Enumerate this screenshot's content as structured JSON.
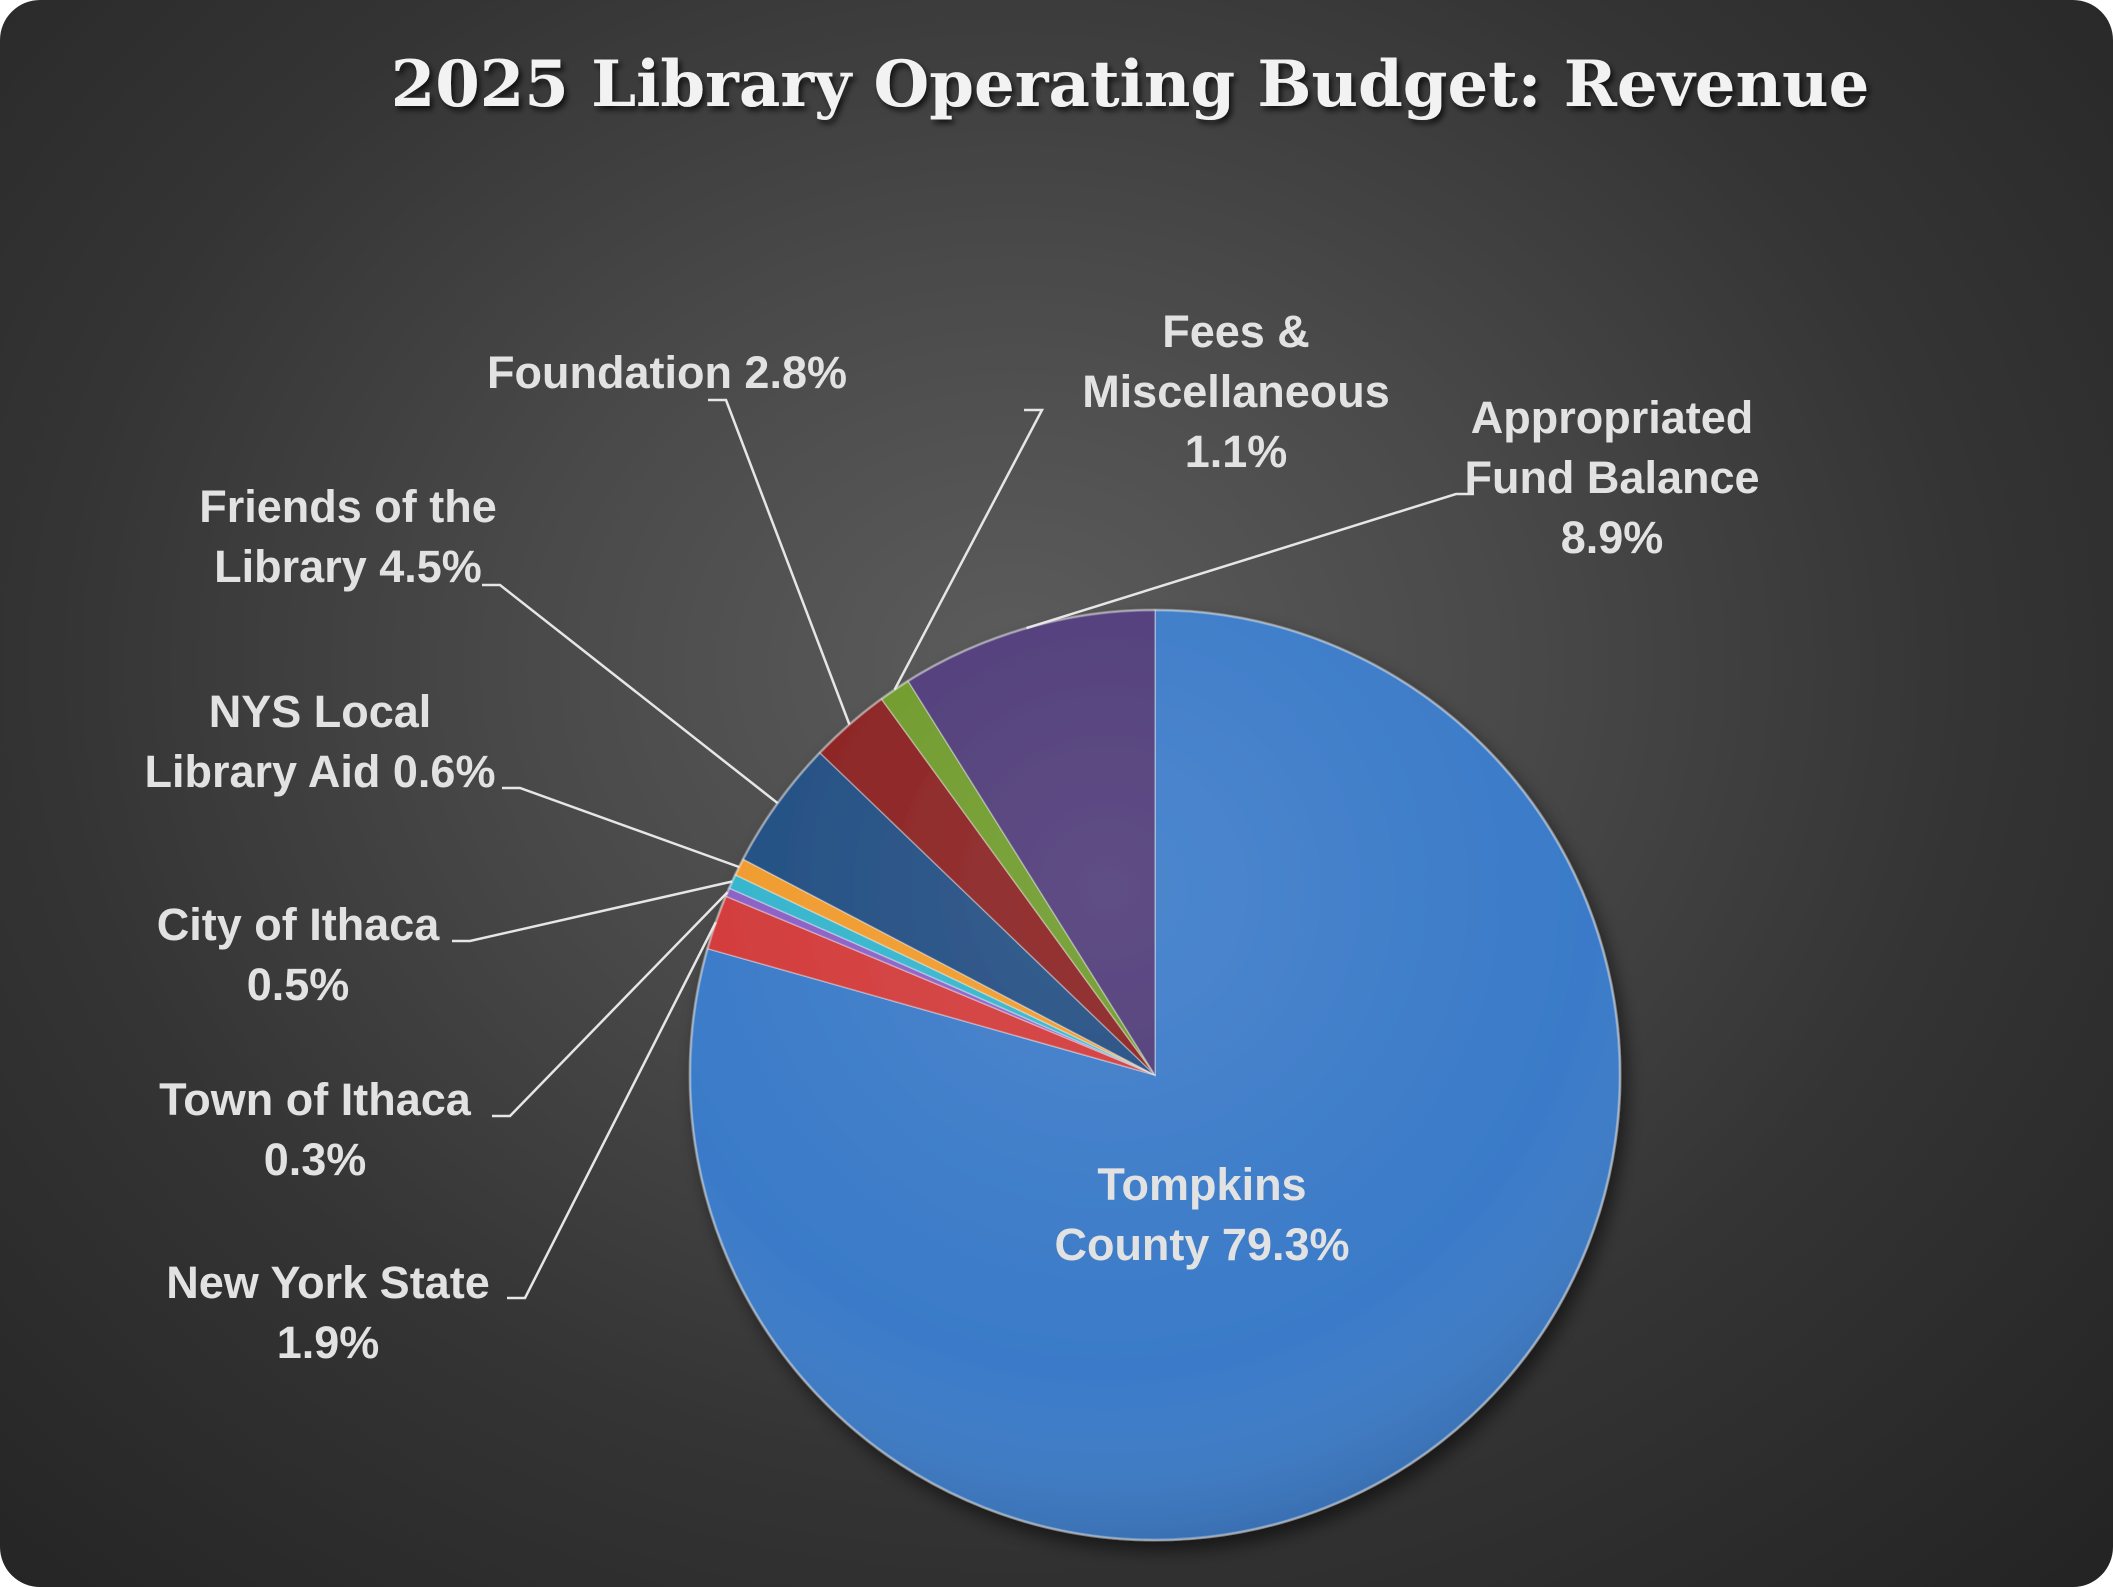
{
  "chart_data": {
    "type": "pie",
    "title": "2025 Library Operating Budget: Revenue",
    "start_angle_deg": 0,
    "direction": "clockwise",
    "slices": [
      {
        "name": "Tompkins County",
        "value": 79.3,
        "label_lines": [
          "Tompkins",
          "County 79.3%"
        ],
        "color": "#3a7ac8"
      },
      {
        "name": "New York State",
        "value": 1.9,
        "label_lines": [
          "New York State",
          "1.9%"
        ],
        "color": "#d23a3a"
      },
      {
        "name": "Town of Ithaca",
        "value": 0.3,
        "label_lines": [
          "Town of Ithaca",
          "0.3%"
        ],
        "color": "#8a5fc4"
      },
      {
        "name": "City of Ithaca",
        "value": 0.5,
        "label_lines": [
          "City of Ithaca",
          "0.5%"
        ],
        "color": "#34b4cc"
      },
      {
        "name": "NYS Local Library Aid",
        "value": 0.6,
        "label_lines": [
          "NYS Local",
          "Library Aid 0.6%"
        ],
        "color": "#f09a2c"
      },
      {
        "name": "Friends of the Library",
        "value": 4.5,
        "label_lines": [
          "Friends of the",
          "Library 4.5%"
        ],
        "color": "#214d82"
      },
      {
        "name": "Foundation",
        "value": 2.8,
        "label_lines": [
          "Foundation  2.8%"
        ],
        "color": "#8a2020"
      },
      {
        "name": "Fees & Miscellaneous",
        "value": 1.1,
        "label_lines": [
          "Fees &",
          "Miscellaneous",
          "1.1%"
        ],
        "color": "#6e9a2a"
      },
      {
        "name": "Appropriated Fund Balance",
        "value": 8.9,
        "label_lines": [
          "Appropriated",
          "Fund Balance",
          "8.9%"
        ],
        "color": "#4e3a78"
      }
    ]
  }
}
